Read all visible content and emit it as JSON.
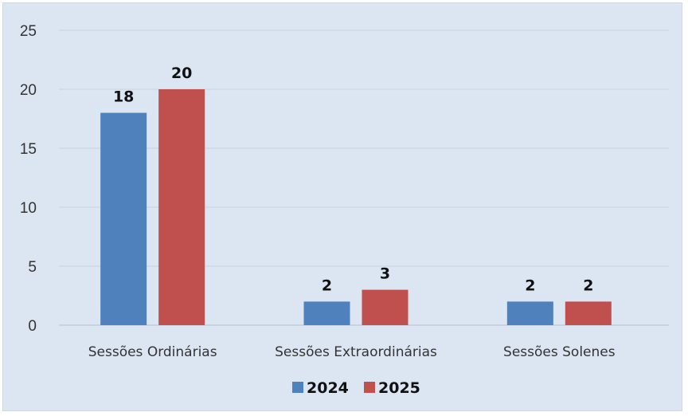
{
  "chart_data": {
    "type": "bar",
    "categories": [
      "Sessões Ordinárias",
      "Sessões Extraordinárias",
      "Sessões Solenes"
    ],
    "series": [
      {
        "name": "2024",
        "values": [
          18,
          2,
          2
        ],
        "color": "#4f81bd"
      },
      {
        "name": "2025",
        "values": [
          20,
          3,
          2
        ],
        "color": "#c0504d"
      }
    ],
    "title": "",
    "xlabel": "",
    "ylabel": "",
    "ylim": [
      0,
      25
    ],
    "yticks": [
      0,
      5,
      10,
      15,
      20,
      25
    ],
    "grid": true,
    "legend_position": "bottom",
    "data_labels": true
  }
}
